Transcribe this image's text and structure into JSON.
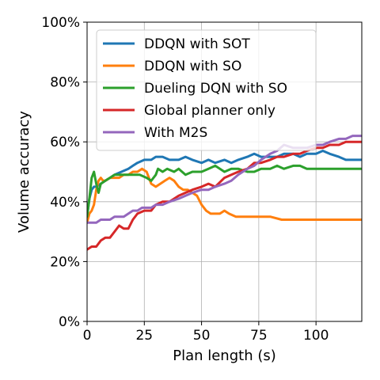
{
  "chart_data": {
    "type": "line",
    "xlabel": "Plan length (s)",
    "ylabel": "Volume accuracy",
    "xlim": [
      0,
      120
    ],
    "ylim": [
      0,
      100
    ],
    "xticks": [
      0,
      25,
      50,
      75,
      100
    ],
    "yticks": [
      0,
      20,
      40,
      60,
      80,
      100
    ],
    "xtick_labels": [
      "0",
      "25",
      "50",
      "75",
      "100"
    ],
    "ytick_labels": [
      "0%",
      "20%",
      "40%",
      "60%",
      "80%",
      "100%"
    ],
    "grid": true,
    "legend_position": "top-left",
    "series": [
      {
        "name": "DDQN with SOT",
        "color": "#1f77b4",
        "x": [
          0,
          1,
          2,
          3,
          4,
          6,
          8,
          10,
          12,
          15,
          18,
          20,
          22,
          25,
          28,
          30,
          33,
          36,
          40,
          43,
          46,
          50,
          53,
          56,
          60,
          63,
          66,
          70,
          73,
          76,
          80,
          83,
          86,
          90,
          93,
          96,
          100,
          103,
          106,
          110,
          113,
          116,
          120
        ],
        "y": [
          35,
          41,
          44,
          45,
          45,
          46,
          47,
          48,
          49,
          50,
          51,
          52,
          53,
          54,
          54,
          55,
          55,
          54,
          54,
          55,
          54,
          53,
          54,
          53,
          54,
          53,
          54,
          55,
          56,
          55,
          55,
          55,
          56,
          56,
          55,
          56,
          56,
          57,
          56,
          55,
          54,
          54,
          54
        ]
      },
      {
        "name": "DDQN with SO",
        "color": "#ff7f0e",
        "x": [
          0,
          1,
          2,
          3,
          4,
          5,
          6,
          7,
          8,
          10,
          12,
          14,
          16,
          18,
          20,
          22,
          24,
          26,
          28,
          30,
          32,
          34,
          36,
          38,
          40,
          42,
          44,
          46,
          48,
          50,
          52,
          54,
          56,
          58,
          60,
          62,
          65,
          68,
          70,
          75,
          80,
          85,
          90,
          95,
          100,
          105,
          110,
          115,
          120
        ],
        "y": [
          33,
          36,
          37,
          39,
          44,
          47,
          48,
          47,
          47,
          48,
          48,
          48,
          49,
          49,
          50,
          50,
          51,
          50,
          46,
          45,
          46,
          47,
          48,
          47,
          45,
          44,
          44,
          43,
          42,
          39,
          37,
          36,
          36,
          36,
          37,
          36,
          35,
          35,
          35,
          35,
          35,
          34,
          34,
          34,
          34,
          34,
          34,
          34,
          34
        ]
      },
      {
        "name": "Dueling DQN with SO",
        "color": "#2ca02c",
        "x": [
          0,
          1,
          2,
          3,
          4,
          5,
          6,
          8,
          10,
          12,
          15,
          18,
          20,
          23,
          26,
          28,
          30,
          31,
          33,
          35,
          38,
          40,
          43,
          46,
          50,
          53,
          56,
          60,
          63,
          66,
          70,
          73,
          76,
          80,
          83,
          86,
          90,
          93,
          96,
          100,
          103,
          106,
          110,
          113,
          116,
          120
        ],
        "y": [
          35,
          41,
          48,
          50,
          46,
          43,
          46,
          47,
          48,
          49,
          49,
          49,
          49,
          49,
          48,
          47,
          49,
          51,
          50,
          51,
          50,
          51,
          49,
          50,
          50,
          51,
          52,
          50,
          51,
          51,
          50,
          50,
          51,
          51,
          52,
          51,
          52,
          52,
          51,
          51,
          51,
          51,
          51,
          51,
          51,
          51
        ]
      },
      {
        "name": "Global planner only",
        "color": "#d62728",
        "x": [
          0,
          2,
          4,
          6,
          8,
          10,
          12,
          14,
          16,
          18,
          20,
          22,
          25,
          28,
          30,
          33,
          36,
          40,
          43,
          46,
          50,
          53,
          56,
          60,
          63,
          66,
          70,
          73,
          76,
          80,
          83,
          86,
          90,
          93,
          96,
          100,
          103,
          106,
          110,
          113,
          116,
          120
        ],
        "y": [
          24,
          25,
          25,
          27,
          28,
          28,
          30,
          32,
          31,
          31,
          34,
          36,
          37,
          37,
          39,
          40,
          40,
          42,
          43,
          44,
          45,
          46,
          45,
          48,
          49,
          50,
          51,
          53,
          53,
          54,
          55,
          55,
          56,
          56,
          57,
          58,
          58,
          59,
          59,
          60,
          60,
          60
        ]
      },
      {
        "name": "With M2S",
        "color": "#9467bd",
        "x": [
          0,
          2,
          4,
          6,
          8,
          10,
          12,
          14,
          16,
          18,
          20,
          22,
          24,
          26,
          28,
          30,
          33,
          36,
          40,
          43,
          46,
          50,
          53,
          56,
          60,
          63,
          66,
          70,
          73,
          76,
          80,
          83,
          86,
          90,
          93,
          96,
          100,
          103,
          106,
          110,
          113,
          116,
          120
        ],
        "y": [
          33,
          33,
          33,
          34,
          34,
          34,
          35,
          35,
          35,
          36,
          37,
          37,
          38,
          38,
          38,
          39,
          39,
          40,
          41,
          42,
          43,
          44,
          44,
          45,
          46,
          47,
          49,
          51,
          52,
          54,
          56,
          57,
          59,
          58,
          58,
          58,
          59,
          59,
          60,
          61,
          61,
          62,
          62
        ]
      }
    ]
  }
}
